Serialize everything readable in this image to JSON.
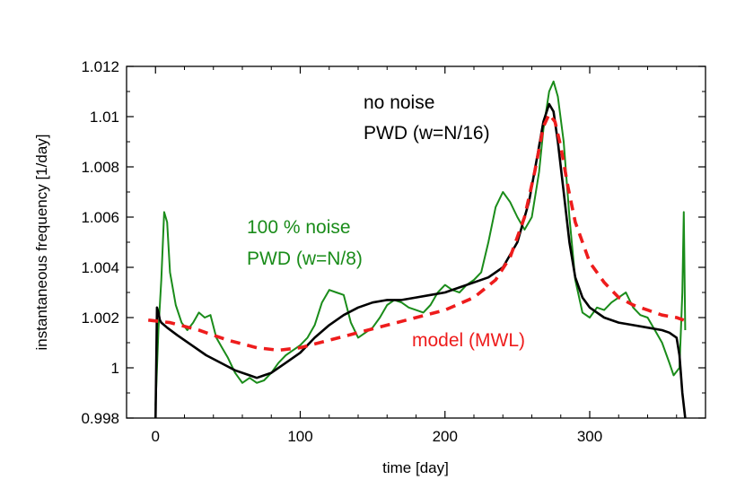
{
  "chart_data": {
    "type": "line",
    "title": "",
    "xlabel": "time [day]",
    "ylabel": "instantaneous frequency [1/day]",
    "xlim": [
      -20,
      380
    ],
    "ylim": [
      0.998,
      1.012
    ],
    "xticks": [
      0,
      100,
      200,
      300
    ],
    "xtick_labels": [
      "0",
      "100",
      "200",
      "300"
    ],
    "yticks": [
      0.998,
      1.0,
      1.002,
      1.004,
      1.006,
      1.008,
      1.01,
      1.012
    ],
    "ytick_labels": [
      "0.998",
      "1",
      "1.002",
      "1.004",
      "1.006",
      "1.008",
      "1.01",
      "1.012"
    ],
    "grid": false,
    "annotations": [
      {
        "id": "black",
        "line1": "no noise",
        "line2": "PWD (w=N/16)",
        "color": "#000000"
      },
      {
        "id": "green",
        "line1": "100 % noise",
        "line2": "PWD (w=N/8)",
        "color": "#1a8c1a"
      },
      {
        "id": "red",
        "line1": "model (MWL)",
        "color": "#ee1c1c"
      }
    ],
    "series": [
      {
        "name": "100 % noise PWD (w=N/8)",
        "color": "#1a8c1a",
        "style": "solid",
        "x": [
          0,
          2,
          4,
          6,
          8,
          10,
          14,
          18,
          22,
          26,
          30,
          34,
          38,
          42,
          46,
          50,
          55,
          60,
          65,
          70,
          75,
          80,
          85,
          90,
          95,
          100,
          105,
          110,
          115,
          120,
          125,
          130,
          135,
          140,
          145,
          150,
          155,
          160,
          165,
          170,
          175,
          180,
          185,
          190,
          195,
          200,
          205,
          210,
          215,
          220,
          225,
          230,
          235,
          240,
          245,
          250,
          255,
          260,
          265,
          268,
          272,
          275,
          278,
          282,
          286,
          290,
          295,
          300,
          305,
          310,
          315,
          320,
          325,
          330,
          335,
          340,
          345,
          350,
          355,
          358,
          362,
          364,
          365,
          366
        ],
        "y": [
          0.9985,
          1.0015,
          1.0035,
          1.0062,
          1.0058,
          1.0038,
          1.0025,
          1.0018,
          1.0015,
          1.0018,
          1.0022,
          1.002,
          1.0021,
          1.0012,
          1.0008,
          1.0004,
          0.9998,
          0.9994,
          0.9996,
          0.9994,
          0.9995,
          0.9998,
          1.0002,
          1.0005,
          1.0007,
          1.0009,
          1.0012,
          1.0017,
          1.0026,
          1.0031,
          1.003,
          1.0029,
          1.0018,
          1.0012,
          1.0014,
          1.0016,
          1.002,
          1.0025,
          1.0027,
          1.0026,
          1.0024,
          1.0023,
          1.0022,
          1.0025,
          1.003,
          1.0033,
          1.0031,
          1.003,
          1.0033,
          1.0035,
          1.0038,
          1.005,
          1.0064,
          1.007,
          1.0066,
          1.006,
          1.0055,
          1.006,
          1.0078,
          1.0095,
          1.011,
          1.0114,
          1.0108,
          1.009,
          1.006,
          1.0035,
          1.0022,
          1.002,
          1.0024,
          1.0023,
          1.0026,
          1.0028,
          1.003,
          1.0024,
          1.0021,
          1.002,
          1.0015,
          1.001,
          1.0002,
          0.9997,
          1.0,
          1.003,
          1.0062,
          1.0015
        ]
      },
      {
        "name": "no noise PWD (w=N/16)",
        "color": "#000000",
        "style": "solid",
        "x": [
          0,
          1,
          2,
          3,
          4,
          8,
          15,
          25,
          35,
          45,
          55,
          65,
          70,
          75,
          80,
          90,
          100,
          110,
          120,
          130,
          140,
          150,
          160,
          170,
          180,
          190,
          200,
          210,
          220,
          230,
          240,
          250,
          258,
          264,
          268,
          272,
          275,
          278,
          282,
          286,
          290,
          295,
          300,
          310,
          320,
          330,
          340,
          350,
          355,
          360,
          362,
          364,
          366
        ],
        "y": [
          0.998,
          1.0024,
          1.0022,
          1.0019,
          1.0018,
          1.0016,
          1.0013,
          1.0009,
          1.0005,
          1.0002,
          0.9999,
          0.9997,
          0.9996,
          0.9997,
          0.9998,
          1.0002,
          1.0006,
          1.0012,
          1.0017,
          1.0021,
          1.0024,
          1.0026,
          1.0027,
          1.0027,
          1.0028,
          1.0029,
          1.003,
          1.0032,
          1.0034,
          1.0036,
          1.004,
          1.005,
          1.0066,
          1.0085,
          1.0098,
          1.0105,
          1.0102,
          1.009,
          1.007,
          1.005,
          1.0036,
          1.0028,
          1.0024,
          1.002,
          1.0018,
          1.0017,
          1.0016,
          1.0015,
          1.0014,
          1.0012,
          1.0005,
          0.999,
          0.998
        ]
      },
      {
        "name": "model (MWL)",
        "color": "#ee1c1c",
        "style": "dashed",
        "x": [
          -5,
          10,
          30,
          50,
          70,
          85,
          100,
          120,
          140,
          160,
          180,
          200,
          220,
          235,
          245,
          255,
          262,
          268,
          272,
          276,
          280,
          285,
          290,
          300,
          310,
          320,
          330,
          340,
          350,
          360,
          365
        ],
        "y": [
          1.0019,
          1.0018,
          1.0015,
          1.0011,
          1.0008,
          1.0007,
          1.0008,
          1.0011,
          1.0014,
          1.0017,
          1.002,
          1.0023,
          1.0028,
          1.0035,
          1.0044,
          1.006,
          1.0078,
          1.0096,
          1.0101,
          1.0098,
          1.0088,
          1.0072,
          1.0058,
          1.0042,
          1.0034,
          1.0028,
          1.0025,
          1.0023,
          1.0021,
          1.002,
          1.0019
        ]
      }
    ]
  }
}
